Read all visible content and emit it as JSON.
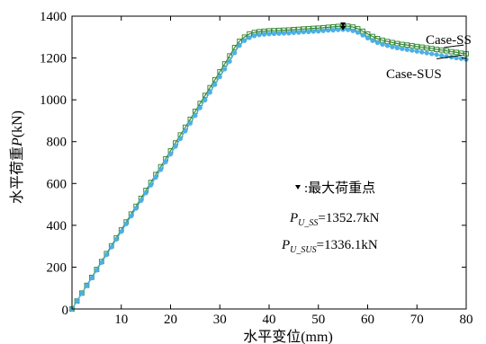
{
  "chart_data": {
    "type": "line",
    "xlabel": "水平变位(mm)",
    "ylabel_prefix": "水平荷重",
    "ylabel_symbol": "P",
    "ylabel_unit": "(kN)",
    "xlim": [
      0,
      80
    ],
    "ylim": [
      0,
      1400
    ],
    "xticks": [
      10,
      20,
      30,
      40,
      50,
      60,
      70,
      80
    ],
    "yticks": [
      0,
      200,
      400,
      600,
      800,
      1000,
      1200,
      1400
    ],
    "grid": false,
    "colors": {
      "SS": "#3a8a3a",
      "SUS": "#4bb0e6"
    },
    "series": [
      {
        "name": "Case-SS",
        "key": "SS",
        "marker": "square",
        "x": [
          0,
          1,
          2,
          3,
          4,
          5,
          6,
          7,
          8,
          9,
          10,
          11,
          12,
          13,
          14,
          15,
          16,
          17,
          18,
          19,
          20,
          21,
          22,
          23,
          24,
          25,
          26,
          27,
          28,
          29,
          30,
          31,
          32,
          33,
          34,
          35,
          36,
          37,
          38,
          39,
          40,
          41,
          42,
          43,
          44,
          45,
          46,
          47,
          48,
          49,
          50,
          51,
          52,
          53,
          54,
          55,
          56,
          57,
          58,
          59,
          60,
          61,
          62,
          63,
          64,
          65,
          66,
          67,
          68,
          69,
          70,
          71,
          72,
          73,
          74,
          75,
          76,
          77,
          78,
          79,
          80
        ],
        "y": [
          0,
          38,
          76,
          113,
          151,
          189,
          227,
          265,
          302,
          340,
          378,
          416,
          454,
          491,
          529,
          567,
          605,
          643,
          680,
          718,
          756,
          794,
          832,
          869,
          907,
          945,
          983,
          1021,
          1058,
          1096,
          1134,
          1172,
          1210,
          1250,
          1280,
          1300,
          1315,
          1322,
          1326,
          1328,
          1330,
          1331,
          1332,
          1333,
          1334,
          1336,
          1337,
          1339,
          1340,
          1342,
          1343,
          1345,
          1347,
          1349,
          1351,
          1353,
          1352,
          1348,
          1340,
          1328,
          1315,
          1303,
          1293,
          1285,
          1279,
          1274,
          1269,
          1265,
          1262,
          1259,
          1255,
          1252,
          1248,
          1245,
          1241,
          1238,
          1234,
          1230,
          1227,
          1223,
          1220
        ]
      },
      {
        "name": "Case-SUS",
        "key": "SUS",
        "marker": "circle",
        "x": [
          0,
          1,
          2,
          3,
          4,
          5,
          6,
          7,
          8,
          9,
          10,
          11,
          12,
          13,
          14,
          15,
          16,
          17,
          18,
          19,
          20,
          21,
          22,
          23,
          24,
          25,
          26,
          27,
          28,
          29,
          30,
          31,
          32,
          33,
          34,
          35,
          36,
          37,
          38,
          39,
          40,
          41,
          42,
          43,
          44,
          45,
          46,
          47,
          48,
          49,
          50,
          51,
          52,
          53,
          54,
          55,
          56,
          57,
          58,
          59,
          60,
          61,
          62,
          63,
          64,
          65,
          66,
          67,
          68,
          69,
          70,
          71,
          72,
          73,
          74,
          75,
          76,
          77,
          78,
          79,
          80
        ],
        "y": [
          0,
          37,
          74,
          111,
          148,
          185,
          222,
          259,
          296,
          333,
          370,
          407,
          444,
          481,
          518,
          555,
          592,
          629,
          666,
          703,
          740,
          777,
          814,
          851,
          888,
          925,
          962,
          999,
          1036,
          1073,
          1110,
          1147,
          1184,
          1225,
          1260,
          1283,
          1297,
          1306,
          1311,
          1313,
          1315,
          1316,
          1317,
          1318,
          1319,
          1321,
          1322,
          1324,
          1325,
          1327,
          1328,
          1330,
          1332,
          1333,
          1335,
          1336,
          1335,
          1330,
          1322,
          1309,
          1295,
          1283,
          1273,
          1265,
          1259,
          1253,
          1248,
          1244,
          1240,
          1236,
          1232,
          1228,
          1224,
          1220,
          1216,
          1212,
          1208,
          1204,
          1200,
          1197,
          1193
        ]
      }
    ],
    "max_points": [
      {
        "key": "SS",
        "x": 55,
        "y": 1352.7
      },
      {
        "key": "SUS",
        "x": 55,
        "y": 1336.1
      }
    ],
    "legend": {
      "ss_label": "Case-SS",
      "sus_label": "Case-SUS",
      "ss_pointer": {
        "from": [
          75.5,
          1250
        ],
        "to": [
          79.5,
          1262
        ]
      },
      "sus_pointer": {
        "from": [
          74,
          1196
        ],
        "to": [
          79,
          1213
        ]
      }
    },
    "annotation": {
      "marker_label": ":最大荷重点",
      "ss_symbol": "P",
      "ss_subscript": "U_SS",
      "ss_value": "=1352.7kN",
      "sus_symbol": "P",
      "sus_subscript": "U_SUS",
      "sus_value": "=1336.1kN"
    }
  }
}
